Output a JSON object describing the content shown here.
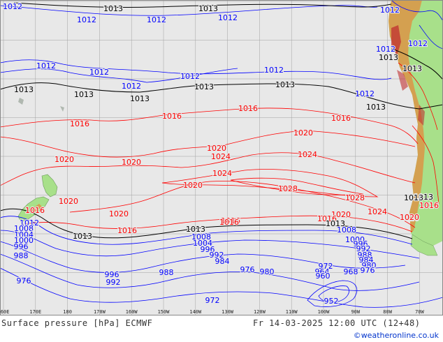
{
  "title": "Surface pressure [hPa] ECMWF",
  "valid_time": "Fr 14-03-2025 12:00 UTC (12+48)",
  "credit": "©weatheronline.co.uk",
  "lon_ticks": [
    "160E",
    "170E",
    "180",
    "170W",
    "160W",
    "150W",
    "140W",
    "130W",
    "120W",
    "110W",
    "100W",
    "90W",
    "80W",
    "70W"
  ],
  "colors": {
    "ocean": "#e8e8e8",
    "land": "#a8e08a",
    "high_land": "#d4a050",
    "grid": "#a0a0a0",
    "isobar_low": "#0000ff",
    "isobar_1013": "#000000",
    "isobar_high": "#ff0000"
  },
  "isobar_labels": [
    {
      "text": "1012",
      "color": "blue"
    },
    {
      "text": "1013",
      "color": "black"
    },
    {
      "text": "1013",
      "color": "black"
    },
    {
      "text": "1012",
      "color": "blue"
    },
    {
      "text": "1012",
      "color": "blue"
    },
    {
      "text": "1012",
      "color": "blue"
    },
    {
      "text": "1012",
      "color": "blue"
    },
    {
      "text": "1012",
      "color": "blue"
    },
    {
      "text": "1012",
      "color": "blue"
    },
    {
      "text": "1012",
      "color": "blue"
    },
    {
      "text": "1012",
      "color": "blue"
    },
    {
      "text": "1012",
      "color": "blue"
    },
    {
      "text": "1012",
      "color": "blue"
    },
    {
      "text": "1013",
      "color": "black"
    },
    {
      "text": "1013",
      "color": "black"
    },
    {
      "text": "1013",
      "color": "black"
    },
    {
      "text": "1013",
      "color": "black"
    },
    {
      "text": "1013",
      "color": "black"
    },
    {
      "text": "1013",
      "color": "black"
    },
    {
      "text": "1013",
      "color": "black"
    },
    {
      "text": "1013",
      "color": "black"
    },
    {
      "text": "1016",
      "color": "red"
    },
    {
      "text": "1016",
      "color": "red"
    },
    {
      "text": "1016",
      "color": "red"
    },
    {
      "text": "1016",
      "color": "red"
    },
    {
      "text": "1020",
      "color": "red"
    },
    {
      "text": "1020",
      "color": "red"
    },
    {
      "text": "1020",
      "color": "red"
    },
    {
      "text": "1020",
      "color": "red"
    },
    {
      "text": "1024",
      "color": "red"
    },
    {
      "text": "1024",
      "color": "red"
    },
    {
      "text": "1020",
      "color": "red"
    },
    {
      "text": "1028",
      "color": "red"
    },
    {
      "text": "1028",
      "color": "red"
    },
    {
      "text": "1024",
      "color": "red"
    },
    {
      "text": "1020",
      "color": "red"
    },
    {
      "text": "1020",
      "color": "red"
    },
    {
      "text": "1020",
      "color": "red"
    },
    {
      "text": "1020",
      "color": "red"
    },
    {
      "text": "1016",
      "color": "red"
    },
    {
      "text": "1016",
      "color": "red"
    },
    {
      "text": "1016",
      "color": "red"
    },
    {
      "text": "1016",
      "color": "red"
    },
    {
      "text": "1012",
      "color": "blue"
    },
    {
      "text": "1013",
      "color": "black"
    },
    {
      "text": "1013",
      "color": "black"
    },
    {
      "text": "1013",
      "color": "black"
    },
    {
      "text": "1013",
      "color": "black"
    },
    {
      "text": "1008",
      "color": "blue"
    },
    {
      "text": "1004",
      "color": "blue"
    },
    {
      "text": "1000",
      "color": "blue"
    },
    {
      "text": "996",
      "color": "blue"
    },
    {
      "text": "988",
      "color": "blue"
    },
    {
      "text": "1008",
      "color": "blue"
    },
    {
      "text": "1004",
      "color": "blue"
    },
    {
      "text": "996",
      "color": "blue"
    },
    {
      "text": "992",
      "color": "blue"
    },
    {
      "text": "984",
      "color": "blue"
    },
    {
      "text": "976",
      "color": "blue"
    },
    {
      "text": "980",
      "color": "blue"
    },
    {
      "text": "972",
      "color": "blue"
    },
    {
      "text": "964",
      "color": "blue"
    },
    {
      "text": "960",
      "color": "blue"
    },
    {
      "text": "968",
      "color": "blue"
    },
    {
      "text": "1008",
      "color": "blue"
    },
    {
      "text": "1000",
      "color": "blue"
    },
    {
      "text": "996",
      "color": "blue"
    },
    {
      "text": "992",
      "color": "blue"
    },
    {
      "text": "988",
      "color": "blue"
    },
    {
      "text": "984",
      "color": "blue"
    },
    {
      "text": "980",
      "color": "blue"
    },
    {
      "text": "976",
      "color": "blue"
    },
    {
      "text": "976",
      "color": "blue"
    },
    {
      "text": "996",
      "color": "blue"
    },
    {
      "text": "992",
      "color": "blue"
    },
    {
      "text": "988",
      "color": "blue"
    },
    {
      "text": "972",
      "color": "blue"
    },
    {
      "text": "952",
      "color": "blue"
    },
    {
      "text": "1020",
      "color": "red"
    },
    {
      "text": "1024",
      "color": "red"
    },
    {
      "text": "1016",
      "color": "red"
    },
    {
      "text": "1013",
      "color": "black"
    },
    {
      "text": "1016",
      "color": "red"
    },
    {
      "text": "1012",
      "color": "blue"
    },
    {
      "text": "1012",
      "color": "blue"
    }
  ]
}
